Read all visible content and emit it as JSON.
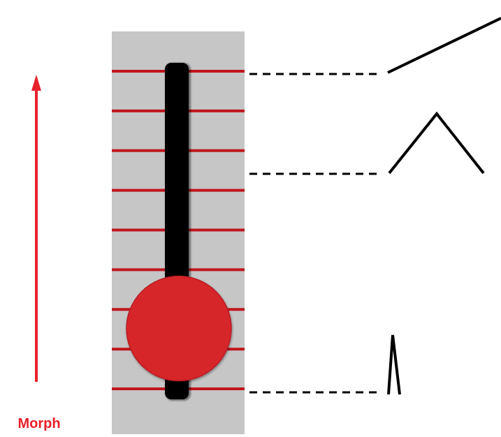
{
  "label": "Morph",
  "colors": {
    "accent": "#e8202a",
    "track": "#c6c6c6",
    "rail": "#c0161d",
    "knob": "#d7252b",
    "ink": "#000000"
  },
  "slider": {
    "notch_count": 9,
    "position_fraction": 0.19
  },
  "waveforms": [
    "sawtooth-icon",
    "triangle-icon",
    "pulse-icon"
  ]
}
